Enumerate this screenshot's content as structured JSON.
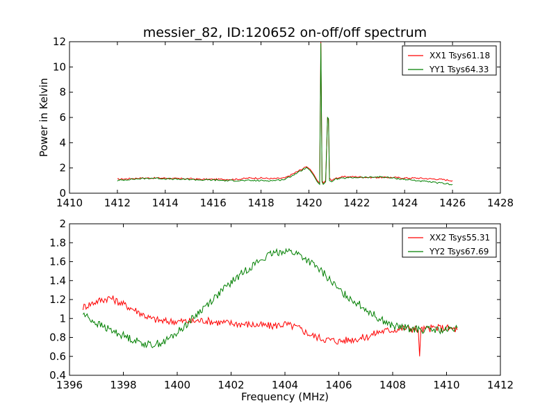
{
  "chart_data": [
    {
      "type": "line",
      "title": "messier_82, ID:120652 on-off/off spectrum",
      "xlabel": "",
      "ylabel": "Power in Kelvin",
      "xlim": [
        1410,
        1428
      ],
      "ylim": [
        0,
        12
      ],
      "xticks": [
        1410,
        1412,
        1414,
        1416,
        1418,
        1420,
        1422,
        1424,
        1426,
        1428
      ],
      "yticks": [
        0,
        2,
        4,
        6,
        8,
        10,
        12
      ],
      "legend_position": "top-right",
      "series": [
        {
          "name": "XX1 Tsys61.18",
          "color": "#ff0000",
          "x": [
            1412.0,
            1412.5,
            1413.0,
            1413.5,
            1414.0,
            1414.5,
            1415.0,
            1415.5,
            1416.0,
            1416.5,
            1417.0,
            1417.5,
            1418.0,
            1418.5,
            1419.0,
            1419.3,
            1419.6,
            1419.9,
            1420.05,
            1420.2,
            1420.35,
            1420.45,
            1420.5,
            1420.55,
            1420.6,
            1420.7,
            1420.78,
            1420.82,
            1420.86,
            1420.95,
            1421.1,
            1421.5,
            1422.0,
            1422.5,
            1423.0,
            1423.5,
            1424.0,
            1424.5,
            1425.0,
            1425.5,
            1426.0
          ],
          "values": [
            1.1,
            1.15,
            1.2,
            1.2,
            1.2,
            1.15,
            1.15,
            1.1,
            1.1,
            1.1,
            1.1,
            1.2,
            1.2,
            1.15,
            1.2,
            1.5,
            1.8,
            2.1,
            1.9,
            1.5,
            1.0,
            0.8,
            12.0,
            1.0,
            0.8,
            1.0,
            6.0,
            5.8,
            1.2,
            1.0,
            1.2,
            1.3,
            1.3,
            1.25,
            1.25,
            1.25,
            1.2,
            1.2,
            1.15,
            1.1,
            1.0
          ]
        },
        {
          "name": "YY1 Tsys64.33",
          "color": "#007f00",
          "x": [
            1412.0,
            1412.5,
            1413.0,
            1413.5,
            1414.0,
            1414.5,
            1415.0,
            1415.5,
            1416.0,
            1416.5,
            1417.0,
            1417.5,
            1418.0,
            1418.5,
            1419.0,
            1419.3,
            1419.6,
            1419.9,
            1420.05,
            1420.2,
            1420.35,
            1420.45,
            1420.5,
            1420.55,
            1420.6,
            1420.7,
            1420.78,
            1420.82,
            1420.86,
            1420.95,
            1421.1,
            1421.5,
            1422.0,
            1422.5,
            1423.0,
            1423.5,
            1424.0,
            1424.5,
            1425.0,
            1425.5,
            1426.0
          ],
          "values": [
            1.0,
            1.1,
            1.15,
            1.2,
            1.15,
            1.1,
            1.1,
            1.05,
            1.05,
            1.0,
            1.0,
            1.0,
            1.0,
            1.0,
            1.1,
            1.4,
            1.7,
            2.05,
            1.8,
            1.4,
            0.9,
            0.7,
            11.9,
            0.9,
            0.7,
            0.9,
            6.0,
            5.9,
            1.0,
            0.9,
            1.1,
            1.2,
            1.25,
            1.25,
            1.3,
            1.2,
            1.1,
            1.0,
            0.9,
            0.8,
            0.7
          ]
        }
      ]
    },
    {
      "type": "line",
      "title": "",
      "xlabel": "Frequency (MHz)",
      "ylabel": "",
      "xlim": [
        1396,
        1412
      ],
      "ylim": [
        0.4,
        2.0
      ],
      "xticks": [
        1396,
        1398,
        1400,
        1402,
        1404,
        1406,
        1408,
        1410,
        1412
      ],
      "yticks": [
        0.4,
        0.6,
        0.8,
        1.0,
        1.2,
        1.4,
        1.6,
        1.8,
        2.0
      ],
      "legend_position": "top-right",
      "series": [
        {
          "name": "XX2 Tsys55.31",
          "color": "#ff0000",
          "x": [
            1396.5,
            1397.0,
            1397.5,
            1398.0,
            1398.5,
            1399.0,
            1399.5,
            1400.0,
            1400.5,
            1401.0,
            1401.5,
            1402.0,
            1402.5,
            1403.0,
            1403.5,
            1404.0,
            1404.5,
            1405.0,
            1405.5,
            1406.0,
            1406.5,
            1407.0,
            1407.5,
            1408.0,
            1408.5,
            1408.95,
            1409.0,
            1409.05,
            1409.5,
            1410.0,
            1410.4
          ],
          "values": [
            1.12,
            1.18,
            1.22,
            1.15,
            1.08,
            1.0,
            0.97,
            0.97,
            0.97,
            0.98,
            0.96,
            0.95,
            0.94,
            0.93,
            0.92,
            0.94,
            0.9,
            0.82,
            0.78,
            0.76,
            0.78,
            0.8,
            0.86,
            0.88,
            0.9,
            0.88,
            0.6,
            0.88,
            0.9,
            0.9,
            0.88
          ]
        },
        {
          "name": "YY2 Tsys67.69",
          "color": "#007f00",
          "x": [
            1396.5,
            1397.0,
            1397.5,
            1398.0,
            1398.5,
            1399.0,
            1399.5,
            1400.0,
            1400.5,
            1401.0,
            1401.5,
            1402.0,
            1402.5,
            1403.0,
            1403.5,
            1404.0,
            1404.5,
            1405.0,
            1405.5,
            1406.0,
            1406.5,
            1407.0,
            1407.5,
            1408.0,
            1408.5,
            1409.0,
            1409.5,
            1410.0,
            1410.4
          ],
          "values": [
            1.05,
            0.95,
            0.88,
            0.82,
            0.76,
            0.72,
            0.75,
            0.85,
            0.98,
            1.12,
            1.25,
            1.38,
            1.5,
            1.6,
            1.68,
            1.72,
            1.68,
            1.58,
            1.46,
            1.3,
            1.2,
            1.1,
            1.0,
            0.92,
            0.9,
            0.88,
            0.88,
            0.87,
            0.9
          ]
        }
      ]
    }
  ]
}
